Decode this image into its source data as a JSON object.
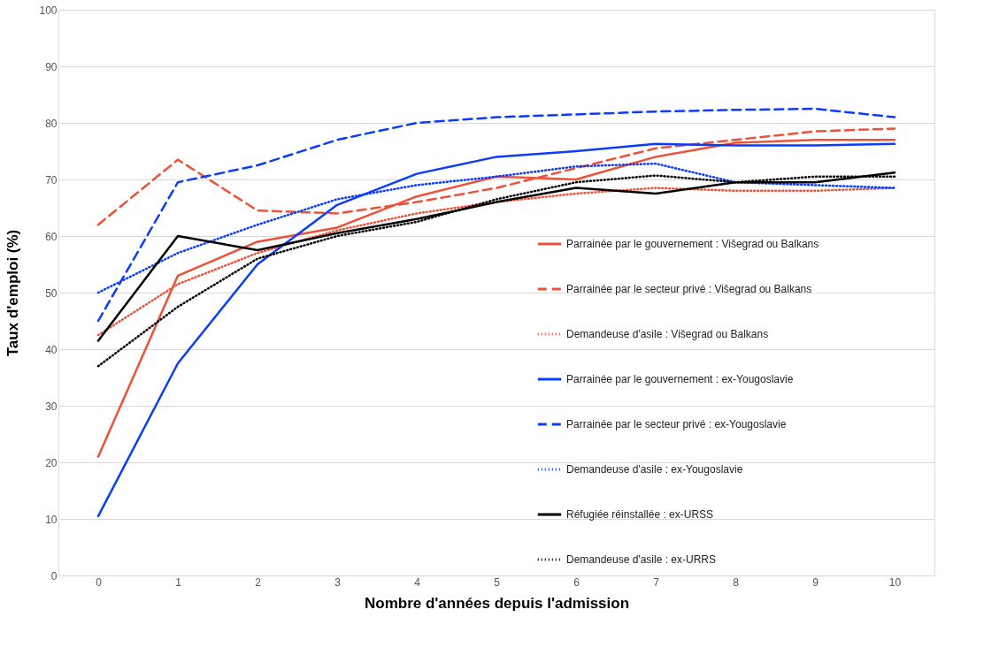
{
  "chart_data": {
    "type": "line",
    "xlabel": "Nombre d'années depuis l'admission",
    "ylabel": "Taux d'emploi (%)",
    "categories": [
      "0",
      "1",
      "2",
      "3",
      "4",
      "5",
      "6",
      "7",
      "8",
      "9",
      "10"
    ],
    "ylim": [
      0,
      100
    ],
    "yticks": [
      0,
      10,
      20,
      30,
      40,
      50,
      60,
      70,
      80,
      90,
      100
    ],
    "grid": "y",
    "legend": "right",
    "marker": "none",
    "series": [
      {
        "name": "Parrainée par le gouvernement : Višegrad ou Balkans",
        "color": "#ee5137",
        "line_style": "solid",
        "values": [
          21,
          53,
          59,
          61.5,
          67,
          70.5,
          70,
          74,
          76.5,
          77,
          77
        ]
      },
      {
        "name": "Parrainée par le secteur privé : Višegrad ou Balkans",
        "color": "#ee5137",
        "line_style": "dashed",
        "values": [
          62,
          73.5,
          64.5,
          64,
          66,
          68.5,
          72,
          75.5,
          77,
          78.5,
          79
        ]
      },
      {
        "name": "Demandeuse d'asile : Višegrad ou Balkans",
        "color": "#ee5137",
        "line_style": "dotted",
        "values": [
          42.5,
          51.5,
          57,
          61,
          64,
          66,
          67.5,
          68.5,
          68,
          68,
          68.5
        ]
      },
      {
        "name": "Parrainée par le gouvernement : ex-Yougoslavie",
        "color": "#0a3cff",
        "line_style": "solid",
        "values": [
          10.5,
          37.5,
          55,
          65.5,
          71,
          74,
          75,
          76.3,
          76,
          76,
          76.3
        ]
      },
      {
        "name": "Parrainée par le secteur privé : ex-Yougoslavie",
        "color": "#0a3cff",
        "line_style": "dashed",
        "values": [
          45,
          69.5,
          72.5,
          77,
          80,
          81,
          81.5,
          82,
          82.3,
          82.5,
          81
        ]
      },
      {
        "name": "Demandeuse d'asile : ex-Yougoslavie",
        "color": "#0a3cff",
        "line_style": "dotted",
        "values": [
          50,
          57,
          62,
          66.5,
          69,
          70.5,
          72.3,
          72.8,
          69.5,
          69,
          68.5
        ]
      },
      {
        "name": "Réfugiée réinstallée : ex-URSS",
        "color": "#000000",
        "line_style": "solid",
        "values": [
          41.5,
          60,
          57.5,
          60.5,
          63,
          66,
          68.5,
          67.5,
          69.5,
          69.5,
          71.2
        ]
      },
      {
        "name": "Demandeuse d'asile : ex-URRS",
        "color": "#000000",
        "line_style": "dotted",
        "values": [
          37,
          47.5,
          56,
          60,
          62.5,
          66.5,
          69.5,
          70.7,
          69.5,
          70.5,
          70.5
        ]
      }
    ]
  }
}
